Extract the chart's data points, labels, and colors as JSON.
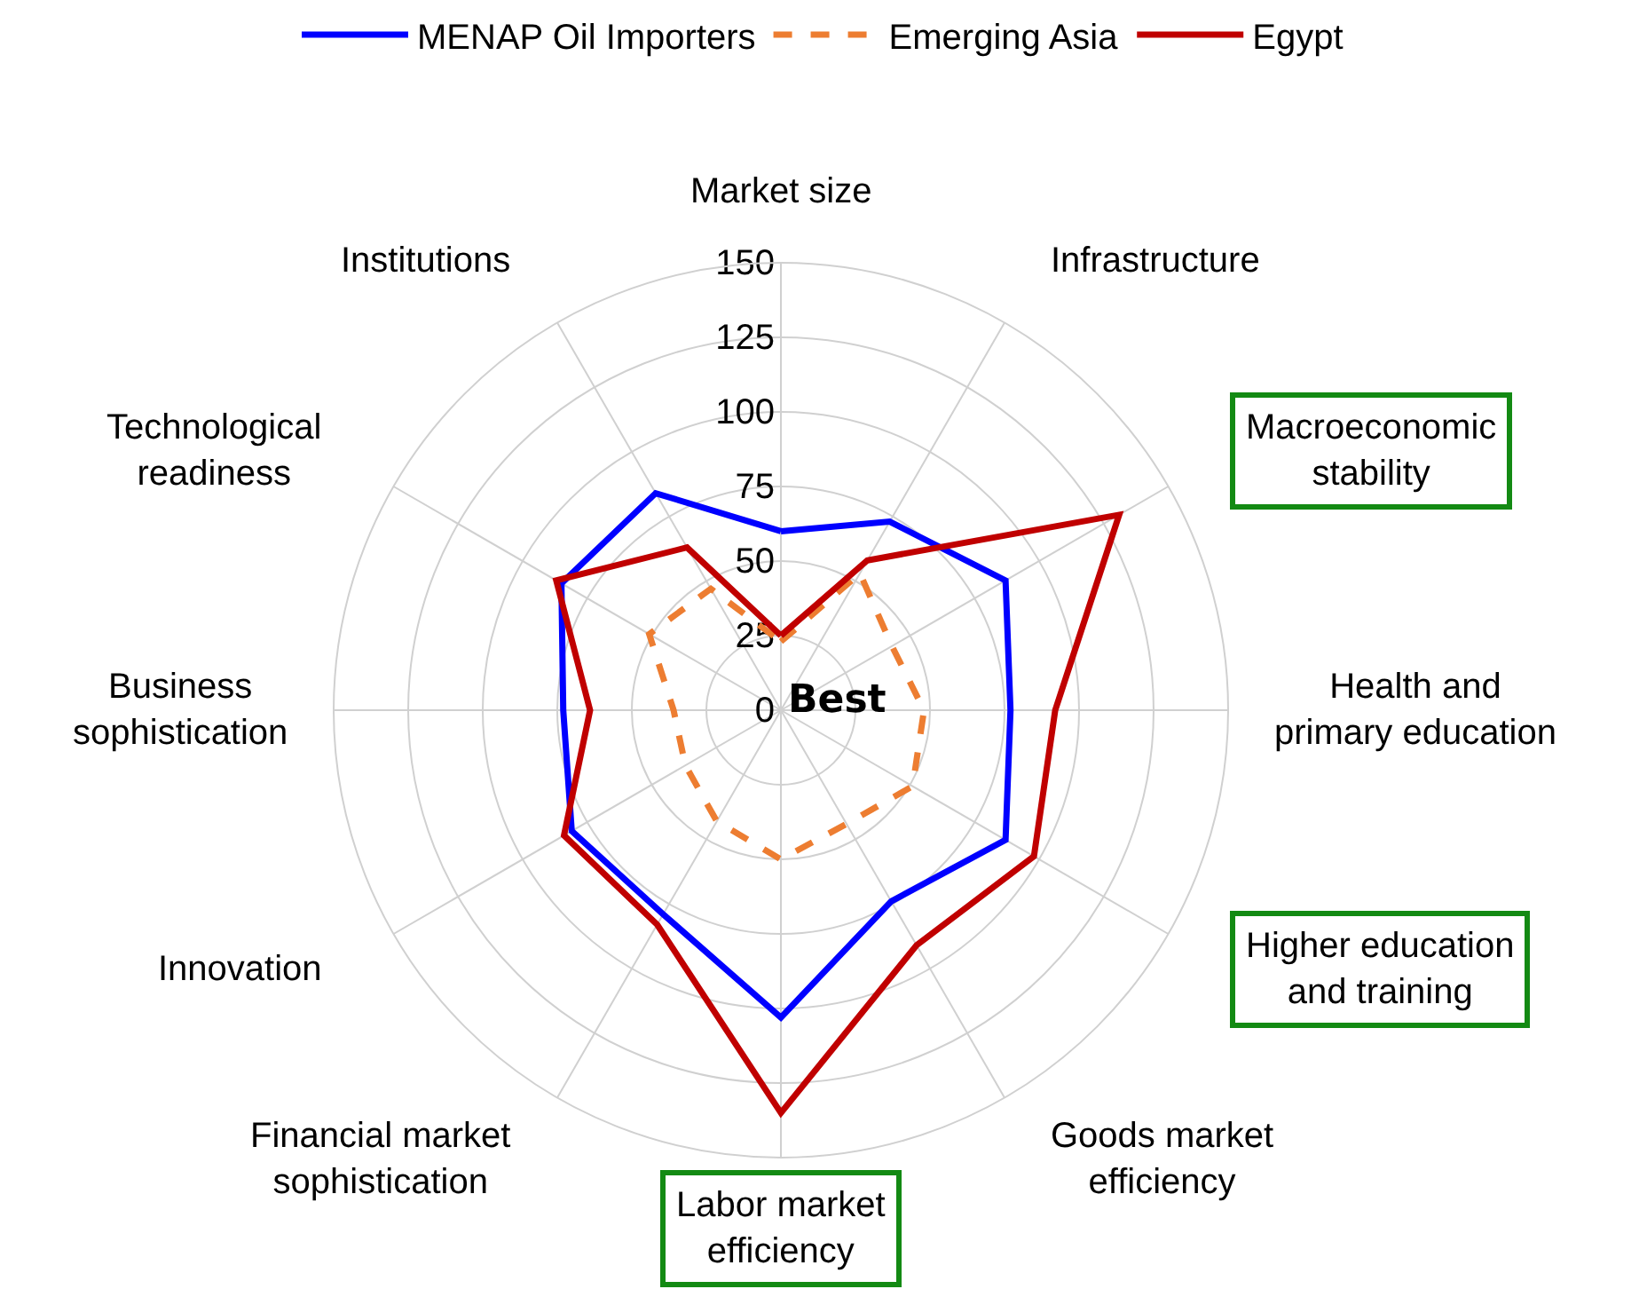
{
  "chart_data": {
    "type": "radar",
    "categories": [
      "Market size",
      "Infrastructure",
      "Macroeconomic stability",
      "Health and primary education",
      "Higher education and training",
      "Goods market efficiency",
      "Labor market efficiency",
      "Financial market sophistication",
      "Innovation",
      "Business sophistication",
      "Technological readiness",
      "Institutions"
    ],
    "series": [
      {
        "name": "MENAP Oil Importers",
        "color": "#0000ff",
        "line_style": "solid",
        "values": [
          60,
          73,
          87,
          77,
          87,
          74,
          103,
          79,
          81,
          73,
          85,
          84
        ]
      },
      {
        "name": "Emerging Asia",
        "color": "#ed7d31",
        "line_style": "dashed",
        "values": [
          23,
          53,
          43,
          48,
          51,
          44,
          50,
          43,
          37,
          36,
          51,
          47
        ]
      },
      {
        "name": "Egypt",
        "color": "#c00000",
        "line_style": "solid",
        "values": [
          25,
          58,
          131,
          92,
          98,
          91,
          135,
          83,
          84,
          64,
          87,
          63
        ]
      }
    ],
    "ylim": [
      0,
      150
    ],
    "yticks": [
      0,
      25,
      50,
      75,
      100,
      125,
      150
    ],
    "grid": true,
    "legend": "top",
    "marker": "none",
    "annotations": [
      "Best"
    ]
  }
}
